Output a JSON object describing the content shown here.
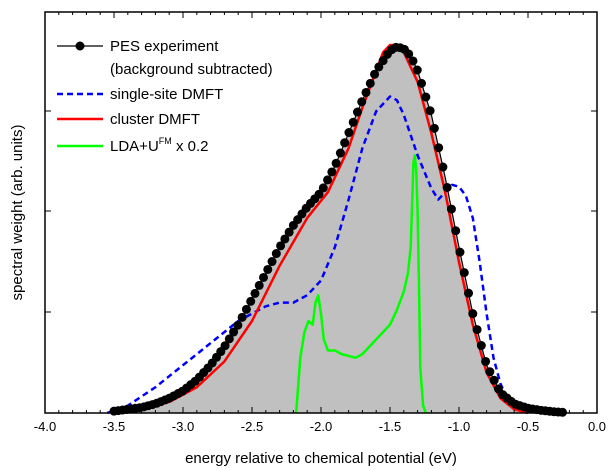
{
  "chart_data": {
    "type": "line",
    "title": "",
    "xlabel": "energy relative to chemical potential (eV)",
    "ylabel": "spectral weight (arb. units)",
    "xlim": [
      -4.0,
      0.0
    ],
    "ylim": [
      0,
      1.0
    ],
    "x_ticks": [
      -4.0,
      -3.5,
      -3.0,
      -2.5,
      -2.0,
      -1.5,
      -1.0,
      -0.5,
      0.0
    ],
    "x_tick_labels": [
      "-4.0",
      "-3.5",
      "-3.0",
      "-2.5",
      "-2.0",
      "-1.5",
      "-1.0",
      "-0.5",
      "0.0"
    ],
    "y_tick_labels_shown": false,
    "grid": false,
    "legend_position": "top-left",
    "legend": [
      {
        "key": "pes",
        "label": "PES experiment",
        "label_line2": "(background subtracted)"
      },
      {
        "key": "single",
        "label": "single-site DMFT"
      },
      {
        "key": "cluster",
        "label": "cluster DMFT"
      },
      {
        "key": "lda",
        "label_main": "LDA+U",
        "label_sup": "FM",
        "label_tail": " x 0.2"
      }
    ],
    "series": [
      {
        "key": "pes",
        "style": "markers-line",
        "color": "#000000",
        "fill": "#c0c0c0",
        "x": [
          -3.5,
          -3.4,
          -3.3,
          -3.2,
          -3.1,
          -3.0,
          -2.9,
          -2.8,
          -2.7,
          -2.6,
          -2.5,
          -2.4,
          -2.3,
          -2.2,
          -2.1,
          -2.0,
          -1.9,
          -1.8,
          -1.7,
          -1.6,
          -1.5,
          -1.45,
          -1.4,
          -1.35,
          -1.3,
          -1.2,
          -1.1,
          -1.0,
          -0.9,
          -0.8,
          -0.7,
          -0.6,
          -0.5,
          -0.4,
          -0.3,
          -0.25
        ],
        "y": [
          0.005,
          0.01,
          0.015,
          0.025,
          0.04,
          0.06,
          0.09,
          0.13,
          0.18,
          0.24,
          0.31,
          0.38,
          0.45,
          0.51,
          0.56,
          0.6,
          0.67,
          0.76,
          0.85,
          0.93,
          0.985,
          0.995,
          0.99,
          0.97,
          0.93,
          0.81,
          0.64,
          0.45,
          0.27,
          0.13,
          0.055,
          0.025,
          0.013,
          0.007,
          0.003,
          0.002
        ]
      },
      {
        "key": "single",
        "style": "dashed",
        "color": "#0000ff",
        "x": [
          -3.55,
          -3.4,
          -3.2,
          -3.0,
          -2.8,
          -2.6,
          -2.5,
          -2.4,
          -2.3,
          -2.2,
          -2.1,
          -2.0,
          -1.9,
          -1.8,
          -1.7,
          -1.6,
          -1.5,
          -1.45,
          -1.4,
          -1.3,
          -1.2,
          -1.15,
          -1.1,
          -1.05,
          -1.0,
          -0.95,
          -0.9,
          -0.85,
          -0.8,
          -0.75,
          -0.7,
          -0.65,
          -0.6,
          -0.55
        ],
        "y": [
          0.0,
          0.02,
          0.07,
          0.13,
          0.19,
          0.25,
          0.27,
          0.29,
          0.3,
          0.3,
          0.32,
          0.36,
          0.45,
          0.58,
          0.72,
          0.82,
          0.86,
          0.85,
          0.81,
          0.7,
          0.61,
          0.58,
          0.6,
          0.62,
          0.615,
          0.59,
          0.53,
          0.41,
          0.27,
          0.15,
          0.08,
          0.04,
          0.015,
          0.005
        ]
      },
      {
        "key": "cluster",
        "style": "solid",
        "color": "#ff0000",
        "x": [
          -3.45,
          -3.3,
          -3.1,
          -2.9,
          -2.7,
          -2.5,
          -2.3,
          -2.1,
          -1.95,
          -1.8,
          -1.7,
          -1.6,
          -1.55,
          -1.5,
          -1.45,
          -1.4,
          -1.3,
          -1.2,
          -1.1,
          -1.0,
          -0.9,
          -0.8,
          -0.7,
          -0.6,
          -0.5
        ],
        "y": [
          0.0,
          0.01,
          0.03,
          0.07,
          0.14,
          0.25,
          0.4,
          0.53,
          0.6,
          0.72,
          0.83,
          0.93,
          0.98,
          1.0,
          1.0,
          0.98,
          0.9,
          0.76,
          0.6,
          0.41,
          0.24,
          0.11,
          0.04,
          0.01,
          0.0
        ]
      },
      {
        "key": "lda",
        "style": "solid",
        "color": "#00ff00",
        "x": [
          -2.18,
          -2.15,
          -2.12,
          -2.09,
          -2.06,
          -2.04,
          -2.02,
          -2.0,
          -1.98,
          -1.95,
          -1.9,
          -1.85,
          -1.8,
          -1.75,
          -1.7,
          -1.65,
          -1.6,
          -1.55,
          -1.5,
          -1.45,
          -1.4,
          -1.37,
          -1.35,
          -1.33,
          -1.32,
          -1.31,
          -1.3,
          -1.29,
          -1.28,
          -1.26,
          -1.24
        ],
        "y": [
          0.0,
          0.15,
          0.22,
          0.25,
          0.24,
          0.3,
          0.32,
          0.27,
          0.2,
          0.17,
          0.17,
          0.16,
          0.155,
          0.15,
          0.16,
          0.18,
          0.2,
          0.22,
          0.24,
          0.28,
          0.33,
          0.38,
          0.45,
          0.68,
          0.7,
          0.66,
          0.55,
          0.35,
          0.12,
          0.02,
          0.0
        ]
      }
    ]
  }
}
